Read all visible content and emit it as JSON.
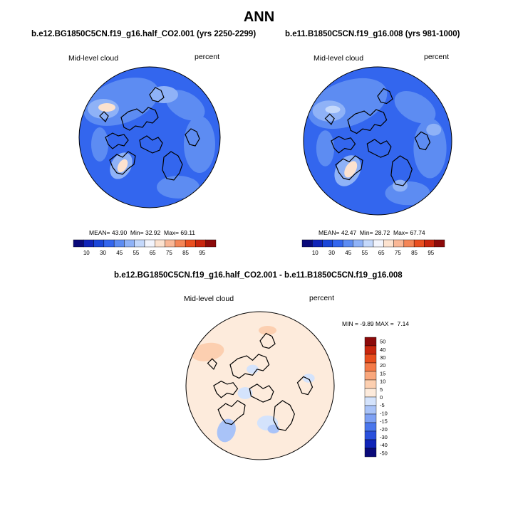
{
  "figure_title": "ANN",
  "panels": [
    {
      "case_title": "b.e12.BG1850C5CN.f19_g16.half_CO2.001 (yrs 2250-2299)",
      "variable": "Mid-level cloud",
      "units": "percent",
      "stats": {
        "mean_label": "MEAN=",
        "mean": "43.90",
        "min_label": "Min=",
        "min": "32.92",
        "max_label": "Max=",
        "max": "69.11"
      }
    },
    {
      "case_title": "b.e11.B1850C5CN.f19_g16.008 (yrs 981-1000)",
      "variable": "Mid-level cloud",
      "units": "percent",
      "stats": {
        "mean_label": "MEAN=",
        "mean": "42.47",
        "min_label": "Min=",
        "min": "28.72",
        "max_label": "Max=",
        "max": "67.74"
      }
    }
  ],
  "diff_panel": {
    "case_title": "b.e12.BG1850C5CN.f19_g16.half_CO2.001 - b.e11.B1850C5CN.f19_g16.008",
    "variable": "Mid-level cloud",
    "units": "percent",
    "stats": {
      "min_label": "MIN =",
      "min": "-9.89",
      "max_label": "MAX =",
      "max": "7.14"
    }
  },
  "colorbar_abs": {
    "colors": [
      "#0a0a7a",
      "#1024b8",
      "#1a46d8",
      "#3366ee",
      "#5d8cf2",
      "#8fb2f7",
      "#c4d8fb",
      "#f2f4fc",
      "#fce2cf",
      "#f9b796",
      "#f48556",
      "#ea4f1f",
      "#c9250d",
      "#8c0a0a"
    ],
    "labels": [
      "10",
      "30",
      "45",
      "55",
      "65",
      "75",
      "85",
      "95"
    ]
  },
  "colorbar_diff": {
    "colors": [
      "#0a0a7a",
      "#1024b8",
      "#2a50dc",
      "#4a76ec",
      "#7ea1f4",
      "#a9c3f8",
      "#d4e3fc",
      "#fdebdc",
      "#fccfb0",
      "#f9a77c",
      "#f47a48",
      "#e84e1d",
      "#c8260d",
      "#8c0a0a"
    ],
    "labels": [
      "50",
      "40",
      "30",
      "20",
      "15",
      "10",
      "5",
      "0",
      "-5",
      "-10",
      "-15",
      "-20",
      "-30",
      "-40",
      "-50"
    ]
  },
  "map_colors": {
    "abs_base": "#3366ee",
    "abs_light": "#5d8cf2",
    "abs_lighter": "#8fb2f7",
    "abs_pale": "#c4d8fb",
    "abs_warm": "#fce2cf",
    "diff_base": "#fdebdc",
    "diff_warm": "#fccfb0",
    "diff_cool": "#d4e3fc",
    "diff_cooler": "#a9c3f8"
  }
}
